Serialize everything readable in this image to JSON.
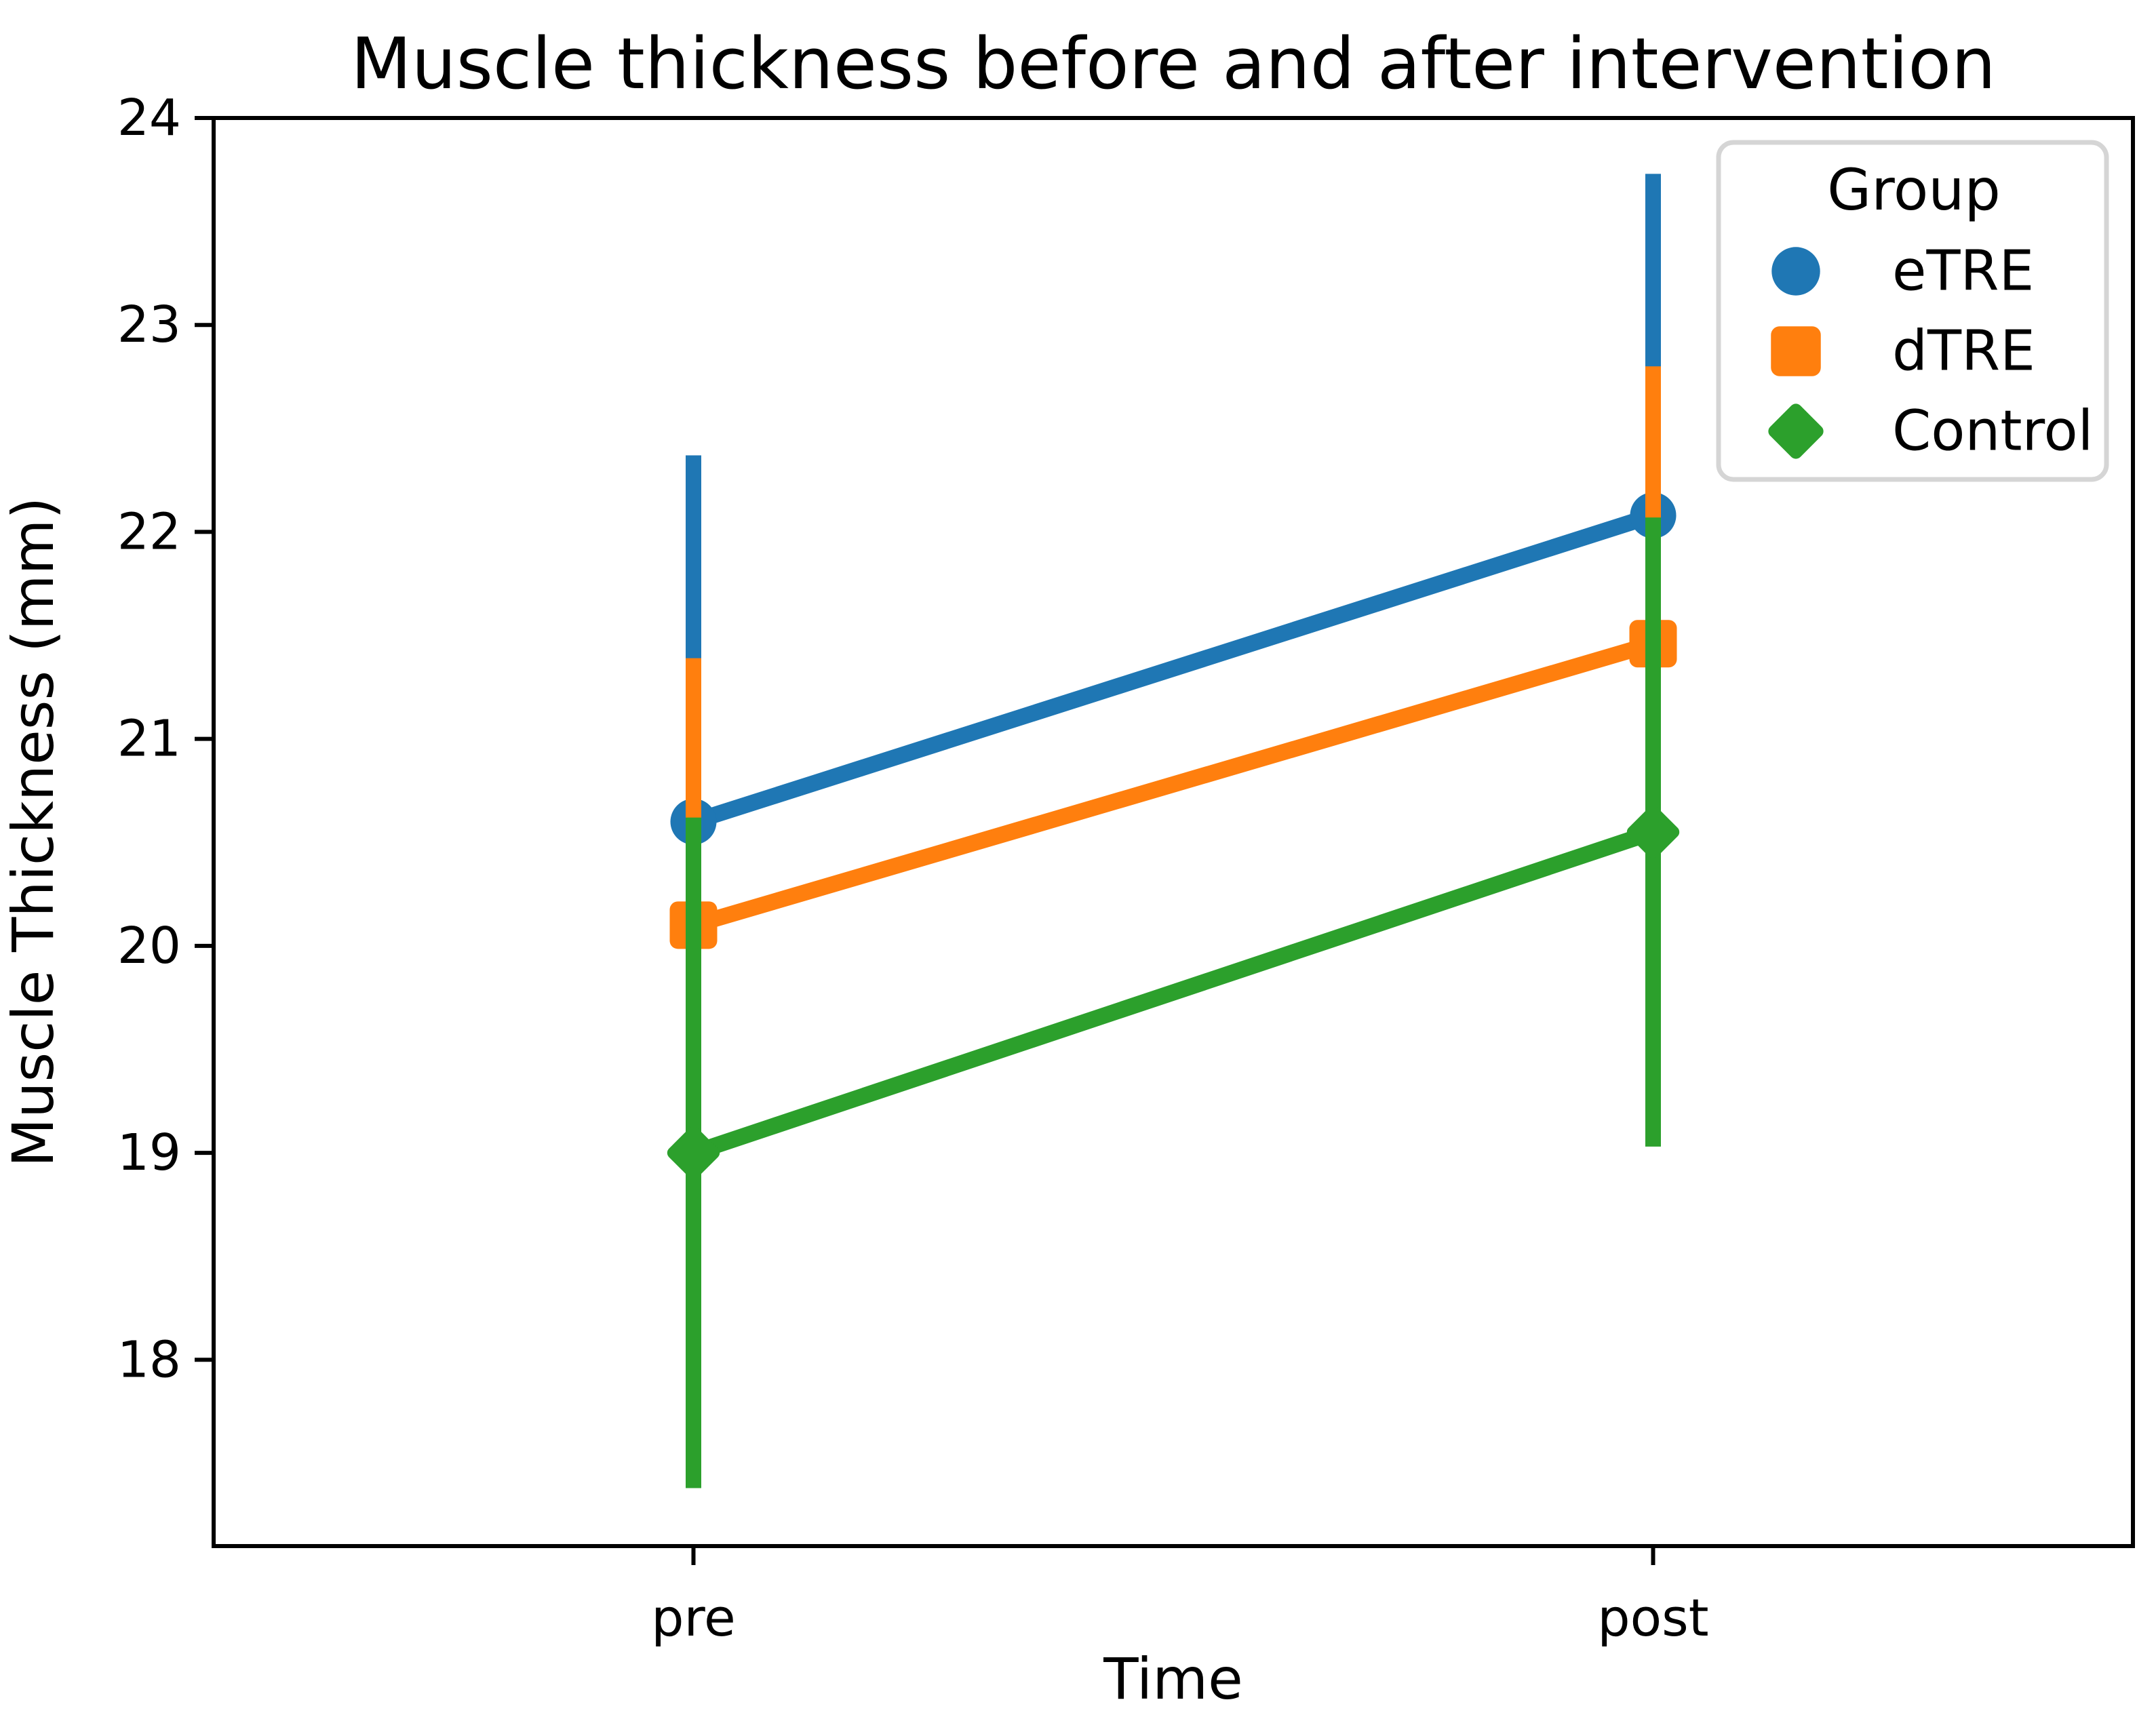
{
  "figure": {
    "background": "#ffffff",
    "frame_color": "#000000",
    "legend_border_color": "#d5d5d5"
  },
  "chart_data": {
    "type": "line",
    "subtype": "point-plot-with-error-bars",
    "title": "Muscle thickness before and after intervention",
    "xlabel": "Time",
    "ylabel": "Muscle Thickness (mm)",
    "categories": [
      "pre",
      "post"
    ],
    "y_ticks": [
      18,
      19,
      20,
      21,
      22,
      23,
      24
    ],
    "ylim": [
      17.1,
      24
    ],
    "grid": false,
    "legend": {
      "title": "Group",
      "position": "upper right"
    },
    "series": [
      {
        "name": "eTRE",
        "color": "#1f77b4",
        "marker": "circle",
        "points": [
          {
            "x": "pre",
            "mean": 20.6,
            "ci_low": 18.85,
            "ci_high": 22.37
          },
          {
            "x": "post",
            "mean": 22.08,
            "ci_low": 20.43,
            "ci_high": 23.73
          }
        ]
      },
      {
        "name": "dTRE",
        "color": "#ff7f0e",
        "marker": "square",
        "points": [
          {
            "x": "pre",
            "mean": 20.1,
            "ci_low": 18.8,
            "ci_high": 21.39
          },
          {
            "x": "post",
            "mean": 21.46,
            "ci_low": 20.12,
            "ci_high": 22.8
          }
        ]
      },
      {
        "name": "Control",
        "color": "#2ca02c",
        "marker": "diamond",
        "points": [
          {
            "x": "pre",
            "mean": 19.0,
            "ci_low": 17.38,
            "ci_high": 20.62
          },
          {
            "x": "post",
            "mean": 20.55,
            "ci_low": 19.03,
            "ci_high": 22.07
          }
        ]
      }
    ]
  }
}
